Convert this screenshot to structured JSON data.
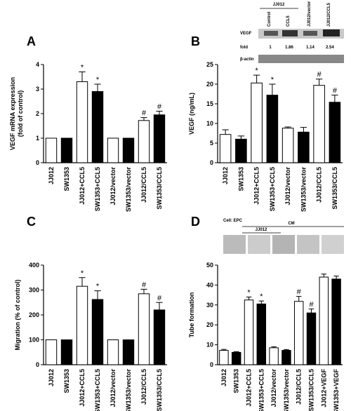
{
  "chart_data": [
    {
      "type": "bar",
      "panel": "A",
      "y_label": [
        "VEGF mRNA expression",
        "(fold of control)"
      ],
      "categories": [
        "JJ012",
        "SW1353",
        "JJ012+CCL5",
        "SW1353+CCL5",
        "JJ012/vector",
        "SW1353/vector",
        "JJ012/CCL5",
        "SW1353/CCL5"
      ],
      "values": [
        1,
        1,
        3.3,
        2.9,
        1,
        1,
        1.72,
        1.95
      ],
      "errors": [
        0,
        0,
        0.4,
        0.3,
        0,
        0,
        0.12,
        0.15
      ],
      "colors": [
        "#ffffff",
        "#000000",
        "#ffffff",
        "#000000",
        "#ffffff",
        "#000000",
        "#ffffff",
        "#000000"
      ],
      "bar_labels": [
        null,
        null,
        "*",
        "*",
        null,
        null,
        "#",
        "#"
      ],
      "ylim": [
        0,
        4
      ],
      "yticks": [
        0,
        1,
        2,
        3,
        4
      ]
    },
    {
      "type": "bar",
      "panel": "B",
      "y_label": [
        "VEGF (ng/mL)"
      ],
      "categories": [
        "JJ012",
        "SW1353",
        "JJ012+CCL5",
        "SW1353+CCL5",
        "JJ012/vector",
        "SW1353/vector",
        "JJ012/CCL5",
        "SW1353/CCL5"
      ],
      "values": [
        7.2,
        6.0,
        20.3,
        17.2,
        8.8,
        7.8,
        19.7,
        15.4
      ],
      "errors": [
        1.2,
        0.8,
        2.0,
        2.8,
        0.3,
        1.2,
        1.6,
        1.8
      ],
      "colors": [
        "#ffffff",
        "#000000",
        "#ffffff",
        "#000000",
        "#ffffff",
        "#000000",
        "#ffffff",
        "#000000"
      ],
      "bar_labels": [
        null,
        null,
        "*",
        "*",
        null,
        null,
        "#",
        "#"
      ],
      "ylim": [
        0,
        25
      ],
      "yticks": [
        0,
        5,
        10,
        15,
        20,
        25
      ]
    },
    {
      "type": "bar",
      "panel": "C",
      "y_label": [
        "Migration (% of control)"
      ],
      "categories": [
        "JJ012",
        "SW1353",
        "JJ012+CCL5",
        "SW1353+CCL5",
        "JJ012/vector",
        "SW1353/vector",
        "JJ012/CCL5",
        "SW1353/CCL5"
      ],
      "values": [
        100,
        100,
        315,
        262,
        100,
        100,
        285,
        220
      ],
      "errors": [
        0,
        0,
        35,
        35,
        0,
        0,
        18,
        30
      ],
      "colors": [
        "#ffffff",
        "#000000",
        "#ffffff",
        "#000000",
        "#ffffff",
        "#000000",
        "#ffffff",
        "#000000"
      ],
      "bar_labels": [
        null,
        null,
        "*",
        "*",
        null,
        null,
        "#",
        "#"
      ],
      "ylim": [
        0,
        400
      ],
      "yticks": [
        0,
        100,
        200,
        300,
        400
      ]
    },
    {
      "type": "bar",
      "panel": "D",
      "y_label": [
        "Tube formation"
      ],
      "categories": [
        "JJ012",
        "SW1353",
        "JJ012+CCL5",
        "SW1353+CCL5",
        "JJ012/vector",
        "SW1353/vector",
        "JJ012/CCL5",
        "SW1353/CCL5",
        "JJ012+VEGF",
        "SW1353+VEGF"
      ],
      "values": [
        7.2,
        6.2,
        32.5,
        30.5,
        8.5,
        7.2,
        31.8,
        26,
        44,
        43
      ],
      "errors": [
        0.5,
        0.3,
        1.5,
        1.5,
        0.5,
        0.4,
        2.5,
        2,
        1.5,
        1.5
      ],
      "colors": [
        "#ffffff",
        "#000000",
        "#ffffff",
        "#000000",
        "#ffffff",
        "#000000",
        "#ffffff",
        "#000000",
        "#ffffff",
        "#000000"
      ],
      "bar_labels": [
        null,
        null,
        "*",
        "*",
        null,
        null,
        "#",
        "#",
        null,
        null
      ],
      "ylim": [
        0,
        50
      ],
      "yticks": [
        0,
        10,
        20,
        30,
        40,
        50
      ]
    }
  ],
  "blot": {
    "group": "JJ012",
    "columns": [
      "Control",
      "CCL5",
      "JJ012/vector",
      "JJ012/CCL5"
    ],
    "rows": [
      "VEGF",
      "fold",
      "β-actin"
    ],
    "fold": [
      "1",
      "1.86",
      "1.14",
      "2.54"
    ]
  },
  "tube_images": {
    "cell": "Cell: EPC",
    "cm": "CM",
    "group": "JJ012"
  }
}
